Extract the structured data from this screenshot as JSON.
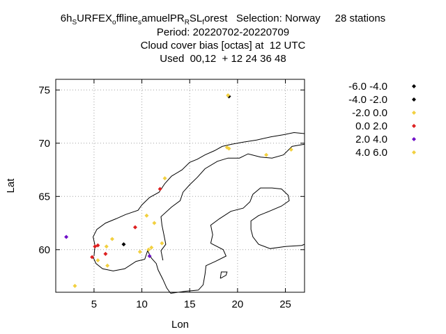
{
  "chart_data": {
    "type": "scatter",
    "title_lines": [
      {
        "parts": [
          {
            "t": "6h",
            "sub": false
          },
          {
            "t": "S",
            "sub": true
          },
          {
            "t": "URFEX",
            "sub": false
          },
          {
            "t": "o",
            "sub": true
          },
          {
            "t": "ffline",
            "sub": false
          },
          {
            "t": "s",
            "sub": true
          },
          {
            "t": "amuelPR",
            "sub": false
          },
          {
            "t": "R",
            "sub": true
          },
          {
            "t": "SL",
            "sub": false
          },
          {
            "t": "f",
            "sub": true
          },
          {
            "t": "orest   Selection: Norway     28 stations",
            "sub": false
          }
        ]
      },
      {
        "parts": [
          {
            "t": "Period: 20220702-20220709",
            "sub": false
          }
        ]
      },
      {
        "parts": [
          {
            "t": "Cloud cover bias [octas] at  12 UTC",
            "sub": false
          }
        ]
      },
      {
        "parts": [
          {
            "t": "Used  00,12  + 12 24 36 48",
            "sub": false
          }
        ]
      }
    ],
    "xlabel": "Lon",
    "ylabel": "Lat",
    "xlim": [
      1,
      27
    ],
    "ylim": [
      56,
      76
    ],
    "xticks": [
      5,
      10,
      15,
      20,
      25
    ],
    "yticks": [
      60,
      65,
      70,
      75
    ],
    "grid": true,
    "legend_position": "right",
    "series": [
      {
        "name": "-6.0 -4.0",
        "color": "#000000",
        "points": []
      },
      {
        "name": "-4.0 -2.0",
        "color": "#000000",
        "points": [
          [
            8.1,
            60.5
          ],
          [
            19.1,
            74.4
          ]
        ]
      },
      {
        "name": "-2.0 0.0",
        "color": "#f2d040",
        "points": [
          [
            3.0,
            56.6
          ],
          [
            6.4,
            58.5
          ],
          [
            5.4,
            59.0
          ],
          [
            6.3,
            60.3
          ],
          [
            6.9,
            61.0
          ],
          [
            9.8,
            59.8
          ],
          [
            10.7,
            60.0
          ],
          [
            11.0,
            60.2
          ],
          [
            10.5,
            63.2
          ],
          [
            11.3,
            62.5
          ],
          [
            12.1,
            60.6
          ],
          [
            12.4,
            66.7
          ],
          [
            18.9,
            69.6
          ],
          [
            19.1,
            69.5
          ],
          [
            23.0,
            68.9
          ],
          [
            25.6,
            69.4
          ],
          [
            19.0,
            74.5
          ]
        ]
      },
      {
        "name": "0.0 2.0",
        "color": "#dd2020",
        "points": [
          [
            4.8,
            59.3
          ],
          [
            5.1,
            60.3
          ],
          [
            5.4,
            60.4
          ],
          [
            6.2,
            59.6
          ],
          [
            9.3,
            62.1
          ],
          [
            11.9,
            65.7
          ]
        ]
      },
      {
        "name": "2.0 4.0",
        "color": "#7010c8",
        "points": [
          [
            2.1,
            61.2
          ],
          [
            10.8,
            59.4
          ]
        ]
      },
      {
        "name": "4.0 6.0",
        "color": "#f2d040",
        "points": []
      }
    ]
  }
}
